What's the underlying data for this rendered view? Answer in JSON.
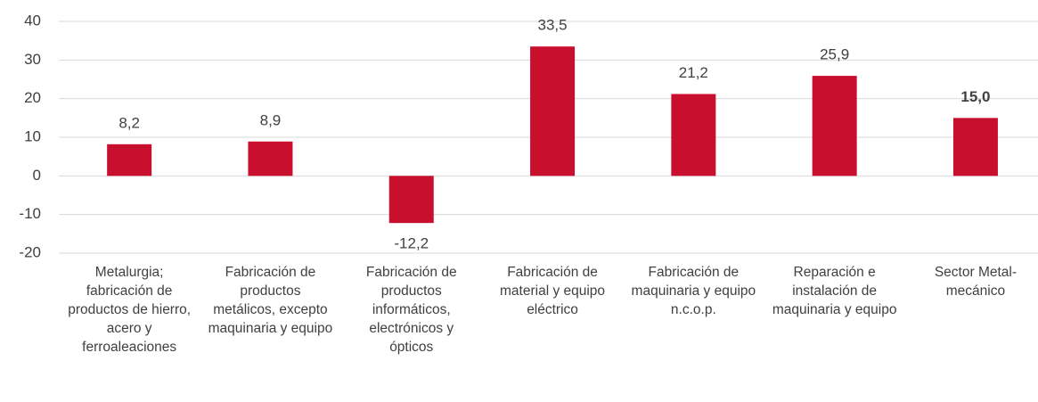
{
  "chart_data": {
    "type": "bar",
    "categories": [
      "Metalurgia; fabricación de productos de hierro, acero y ferroaleaciones",
      "Fabricación de productos metálicos, excepto maquinaria y equipo",
      "Fabricación de productos informáticos, electrónicos y ópticos",
      "Fabricación de material y equipo eléctrico",
      "Fabricación de maquinaria y equipo n.c.o.p.",
      "Reparación e instalación de maquinaria y equipo",
      "Sector Metal-mecánico"
    ],
    "values": [
      8.2,
      8.9,
      -12.2,
      33.5,
      21.2,
      25.9,
      15.0
    ],
    "value_labels": [
      "8,2",
      "8,9",
      "-12,2",
      "33,5",
      "21,2",
      "25,9",
      "15,0"
    ],
    "value_label_bold": [
      false,
      false,
      false,
      false,
      false,
      false,
      true
    ],
    "color": "#c8102e",
    "ylim": [
      -20,
      40
    ],
    "yticks": [
      -20,
      -10,
      0,
      10,
      20,
      30,
      40
    ],
    "grid": true
  }
}
